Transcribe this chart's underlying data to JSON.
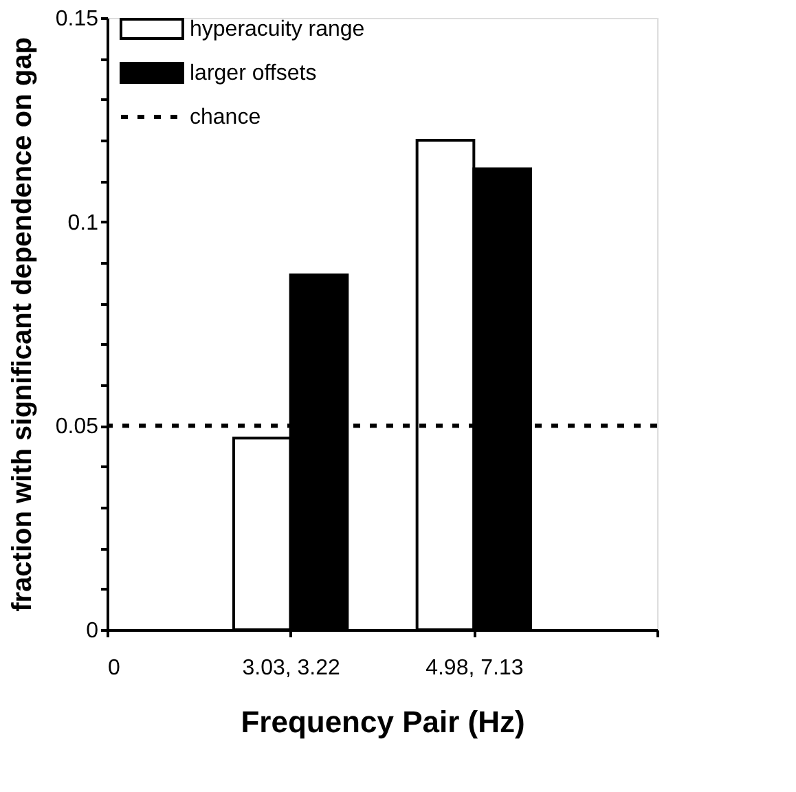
{
  "chart_data": {
    "type": "bar",
    "xlabel": "Frequency Pair (Hz)",
    "ylabel": "fraction with significant dependence on gap",
    "categories": [
      "0",
      "3.03, 3.22",
      "4.98, 7.13",
      null
    ],
    "series": [
      {
        "name": "hyperacuity range",
        "color": "#ffffff",
        "values": [
          null,
          0.047,
          0.12,
          null
        ]
      },
      {
        "name": "larger offsets",
        "color": "#000000",
        "values": [
          null,
          0.087,
          0.113,
          null
        ]
      }
    ],
    "ylim": [
      0,
      0.15
    ],
    "yticks": [
      0,
      {
        "value": 0.01,
        "label": null
      },
      {
        "value": 0.02,
        "label": null
      },
      {
        "value": 0.03,
        "label": null
      },
      {
        "value": 0.04,
        "label": null
      },
      0.05,
      {
        "value": 0.06,
        "label": null
      },
      {
        "value": 0.07,
        "label": null
      },
      {
        "value": 0.08,
        "label": null
      },
      {
        "value": 0.09,
        "label": null
      },
      0.1,
      {
        "value": 0.11,
        "label": null
      },
      {
        "value": 0.12,
        "label": null
      },
      {
        "value": 0.13,
        "label": null
      },
      {
        "value": 0.14,
        "label": null
      },
      0.15
    ],
    "ref_lines": [
      {
        "axis": "y",
        "value": 0.05,
        "label": "chance",
        "color": "#000000",
        "line_style": "dashed"
      }
    ],
    "legend": "top left",
    "grid": false
  }
}
